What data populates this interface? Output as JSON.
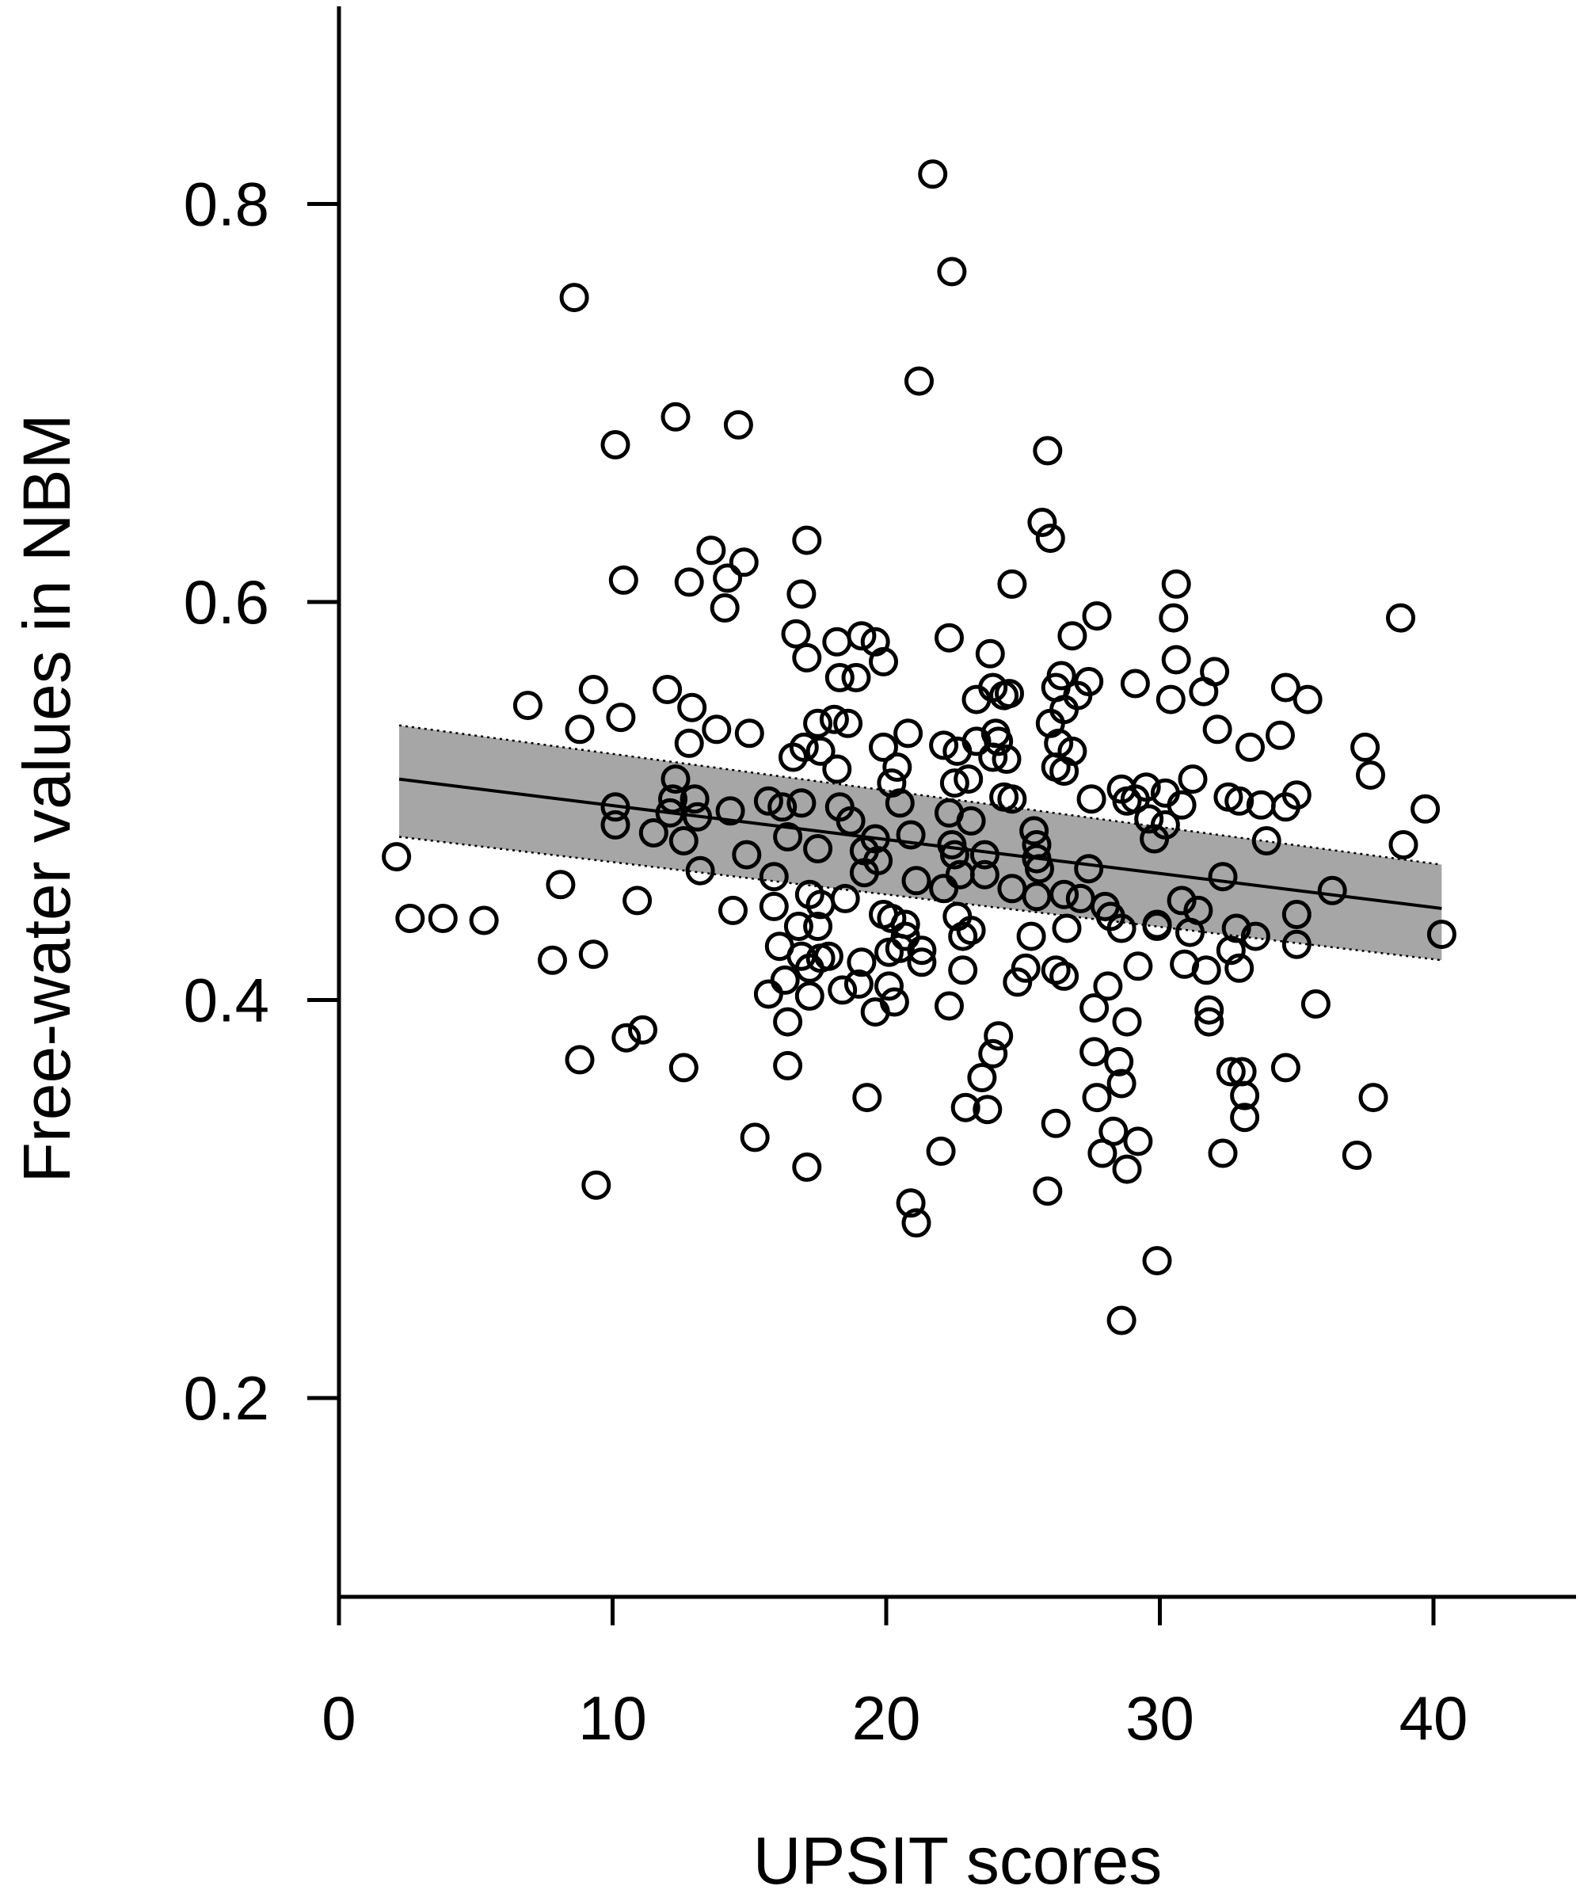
{
  "chart_data": {
    "type": "scatter",
    "xlabel": "UPSIT scores",
    "ylabel": "Free-water values in NBM",
    "xlim": [
      0,
      45
    ],
    "ylim": [
      0.1,
      0.9
    ],
    "x_ticks": [
      0,
      10,
      20,
      30,
      40
    ],
    "x_tick_labels": [
      "0",
      "10",
      "20",
      "30",
      "40"
    ],
    "y_ticks": [
      0.2,
      0.4,
      0.6,
      0.8
    ],
    "y_tick_labels": [
      "0.2",
      "0.4",
      "0.6",
      "0.8"
    ],
    "grid": false,
    "legend": false,
    "regression": {
      "x": [
        2.2,
        40.3
      ],
      "y": [
        0.511,
        0.446
      ]
    },
    "confidence_band": {
      "x": [
        2.2,
        40.3
      ],
      "upper": [
        0.538,
        0.468
      ],
      "lower": [
        0.482,
        0.42
      ]
    },
    "points": [
      [
        2.1,
        0.472
      ],
      [
        2.6,
        0.441
      ],
      [
        3.8,
        0.441
      ],
      [
        5.3,
        0.44
      ],
      [
        6.9,
        0.548
      ],
      [
        8.1,
        0.458
      ],
      [
        7.8,
        0.42
      ],
      [
        9.3,
        0.423
      ],
      [
        8.6,
        0.753
      ],
      [
        8.8,
        0.536
      ],
      [
        9.3,
        0.556
      ],
      [
        8.8,
        0.37
      ],
      [
        9.4,
        0.307
      ],
      [
        10.1,
        0.679
      ],
      [
        10.1,
        0.497
      ],
      [
        10.1,
        0.488
      ],
      [
        10.3,
        0.542
      ],
      [
        10.4,
        0.611
      ],
      [
        10.5,
        0.381
      ],
      [
        10.9,
        0.45
      ],
      [
        11.1,
        0.385
      ],
      [
        11.5,
        0.484
      ],
      [
        12.0,
        0.556
      ],
      [
        12.1,
        0.494
      ],
      [
        12.2,
        0.501
      ],
      [
        12.3,
        0.693
      ],
      [
        12.3,
        0.511
      ],
      [
        12.6,
        0.48
      ],
      [
        12.6,
        0.366
      ],
      [
        12.8,
        0.529
      ],
      [
        12.8,
        0.61
      ],
      [
        12.9,
        0.547
      ],
      [
        13.0,
        0.501
      ],
      [
        13.1,
        0.492
      ],
      [
        13.2,
        0.465
      ],
      [
        13.6,
        0.626
      ],
      [
        13.8,
        0.536
      ],
      [
        14.1,
        0.597
      ],
      [
        14.2,
        0.612
      ],
      [
        14.6,
        0.689
      ],
      [
        14.3,
        0.495
      ],
      [
        14.4,
        0.445
      ],
      [
        14.8,
        0.62
      ],
      [
        15.0,
        0.534
      ],
      [
        14.9,
        0.473
      ],
      [
        15.2,
        0.331
      ],
      [
        15.7,
        0.5
      ],
      [
        15.9,
        0.462
      ],
      [
        15.7,
        0.403
      ],
      [
        15.9,
        0.447
      ],
      [
        16.1,
        0.427
      ],
      [
        16.3,
        0.41
      ],
      [
        16.2,
        0.497
      ],
      [
        16.4,
        0.482
      ],
      [
        16.6,
        0.522
      ],
      [
        16.4,
        0.389
      ],
      [
        16.4,
        0.367
      ],
      [
        16.7,
        0.584
      ],
      [
        16.9,
        0.499
      ],
      [
        16.9,
        0.604
      ],
      [
        16.8,
        0.437
      ],
      [
        16.9,
        0.422
      ],
      [
        17.1,
        0.631
      ],
      [
        17.1,
        0.572
      ],
      [
        17.0,
        0.527
      ],
      [
        17.2,
        0.453
      ],
      [
        17.2,
        0.416
      ],
      [
        17.2,
        0.402
      ],
      [
        17.1,
        0.316
      ],
      [
        17.5,
        0.539
      ],
      [
        17.6,
        0.525
      ],
      [
        17.5,
        0.476
      ],
      [
        17.6,
        0.448
      ],
      [
        17.5,
        0.437
      ],
      [
        17.6,
        0.421
      ],
      [
        17.9,
        0.422
      ],
      [
        18.2,
        0.58
      ],
      [
        18.1,
        0.541
      ],
      [
        18.2,
        0.516
      ],
      [
        18.3,
        0.497
      ],
      [
        18.3,
        0.562
      ],
      [
        18.6,
        0.539
      ],
      [
        18.5,
        0.451
      ],
      [
        18.4,
        0.405
      ],
      [
        18.7,
        0.49
      ],
      [
        18.9,
        0.562
      ],
      [
        19.1,
        0.583
      ],
      [
        19.2,
        0.475
      ],
      [
        19.2,
        0.464
      ],
      [
        19.1,
        0.419
      ],
      [
        19.0,
        0.408
      ],
      [
        19.3,
        0.351
      ],
      [
        19.6,
        0.58
      ],
      [
        19.7,
        0.47
      ],
      [
        19.6,
        0.481
      ],
      [
        19.6,
        0.394
      ],
      [
        19.9,
        0.57
      ],
      [
        19.9,
        0.443
      ],
      [
        19.9,
        0.527
      ],
      [
        20.2,
        0.509
      ],
      [
        20.2,
        0.441
      ],
      [
        20.1,
        0.424
      ],
      [
        20.1,
        0.407
      ],
      [
        20.3,
        0.399
      ],
      [
        20.4,
        0.517
      ],
      [
        20.5,
        0.499
      ],
      [
        20.5,
        0.426
      ],
      [
        20.7,
        0.432
      ],
      [
        20.7,
        0.438
      ],
      [
        20.8,
        0.534
      ],
      [
        20.9,
        0.483
      ],
      [
        20.9,
        0.298
      ],
      [
        21.1,
        0.288
      ],
      [
        21.2,
        0.711
      ],
      [
        21.1,
        0.46
      ],
      [
        21.3,
        0.425
      ],
      [
        21.3,
        0.419
      ],
      [
        21.7,
        0.815
      ],
      [
        22.0,
        0.324
      ],
      [
        22.1,
        0.456
      ],
      [
        22.3,
        0.582
      ],
      [
        22.1,
        0.528
      ],
      [
        22.4,
        0.766
      ],
      [
        22.3,
        0.494
      ],
      [
        22.4,
        0.478
      ],
      [
        22.3,
        0.397
      ],
      [
        22.6,
        0.525
      ],
      [
        22.5,
        0.509
      ],
      [
        22.5,
        0.473
      ],
      [
        22.6,
        0.442
      ],
      [
        22.7,
        0.463
      ],
      [
        22.8,
        0.432
      ],
      [
        22.8,
        0.415
      ],
      [
        22.9,
        0.346
      ],
      [
        23.0,
        0.511
      ],
      [
        23.1,
        0.49
      ],
      [
        23.1,
        0.435
      ],
      [
        23.3,
        0.551
      ],
      [
        23.3,
        0.53
      ],
      [
        23.5,
        0.361
      ],
      [
        23.6,
        0.473
      ],
      [
        23.6,
        0.463
      ],
      [
        23.7,
        0.345
      ],
      [
        23.8,
        0.574
      ],
      [
        23.9,
        0.557
      ],
      [
        23.9,
        0.522
      ],
      [
        24.0,
        0.534
      ],
      [
        24.1,
        0.53
      ],
      [
        24.1,
        0.382
      ],
      [
        23.9,
        0.373
      ],
      [
        24.3,
        0.553
      ],
      [
        24.3,
        0.502
      ],
      [
        24.4,
        0.521
      ],
      [
        24.6,
        0.609
      ],
      [
        24.5,
        0.554
      ],
      [
        24.6,
        0.501
      ],
      [
        24.6,
        0.456
      ],
      [
        24.8,
        0.409
      ],
      [
        25.1,
        0.416
      ],
      [
        25.3,
        0.432
      ],
      [
        25.4,
        0.485
      ],
      [
        25.5,
        0.478
      ],
      [
        25.5,
        0.452
      ],
      [
        25.5,
        0.471
      ],
      [
        25.6,
        0.466
      ],
      [
        25.7,
        0.64
      ],
      [
        26.0,
        0.632
      ],
      [
        25.9,
        0.676
      ],
      [
        26.0,
        0.539
      ],
      [
        25.9,
        0.304
      ],
      [
        26.2,
        0.557
      ],
      [
        26.3,
        0.529
      ],
      [
        26.2,
        0.517
      ],
      [
        26.2,
        0.415
      ],
      [
        26.2,
        0.338
      ],
      [
        26.4,
        0.563
      ],
      [
        26.5,
        0.546
      ],
      [
        26.5,
        0.515
      ],
      [
        26.5,
        0.453
      ],
      [
        26.6,
        0.436
      ],
      [
        26.5,
        0.412
      ],
      [
        26.8,
        0.583
      ],
      [
        26.8,
        0.525
      ],
      [
        27.0,
        0.553
      ],
      [
        27.1,
        0.451
      ],
      [
        27.4,
        0.56
      ],
      [
        27.4,
        0.466
      ],
      [
        27.5,
        0.501
      ],
      [
        27.6,
        0.374
      ],
      [
        27.6,
        0.396
      ],
      [
        27.7,
        0.351
      ],
      [
        27.7,
        0.593
      ],
      [
        27.9,
        0.323
      ],
      [
        28.0,
        0.447
      ],
      [
        28.1,
        0.407
      ],
      [
        28.2,
        0.442
      ],
      [
        28.3,
        0.334
      ],
      [
        28.6,
        0.506
      ],
      [
        28.6,
        0.436
      ],
      [
        28.5,
        0.369
      ],
      [
        28.6,
        0.358
      ],
      [
        28.6,
        0.239
      ],
      [
        28.8,
        0.5
      ],
      [
        28.8,
        0.389
      ],
      [
        28.8,
        0.315
      ],
      [
        29.1,
        0.559
      ],
      [
        29.1,
        0.501
      ],
      [
        29.2,
        0.417
      ],
      [
        29.2,
        0.329
      ],
      [
        29.5,
        0.507
      ],
      [
        29.6,
        0.491
      ],
      [
        29.8,
        0.481
      ],
      [
        29.9,
        0.269
      ],
      [
        29.9,
        0.438
      ],
      [
        29.9,
        0.437
      ],
      [
        30.2,
        0.504
      ],
      [
        30.2,
        0.488
      ],
      [
        30.4,
        0.551
      ],
      [
        30.5,
        0.592
      ],
      [
        30.6,
        0.571
      ],
      [
        30.6,
        0.609
      ],
      [
        30.8,
        0.498
      ],
      [
        30.8,
        0.45
      ],
      [
        30.9,
        0.418
      ],
      [
        31.1,
        0.434
      ],
      [
        31.2,
        0.511
      ],
      [
        31.4,
        0.445
      ],
      [
        31.6,
        0.555
      ],
      [
        31.7,
        0.415
      ],
      [
        31.8,
        0.395
      ],
      [
        31.8,
        0.389
      ],
      [
        32.0,
        0.565
      ],
      [
        32.1,
        0.536
      ],
      [
        32.3,
        0.462
      ],
      [
        32.3,
        0.323
      ],
      [
        32.5,
        0.502
      ],
      [
        32.6,
        0.425
      ],
      [
        32.6,
        0.364
      ],
      [
        32.8,
        0.436
      ],
      [
        32.9,
        0.5
      ],
      [
        32.9,
        0.416
      ],
      [
        33.0,
        0.364
      ],
      [
        33.1,
        0.352
      ],
      [
        33.1,
        0.341
      ],
      [
        33.3,
        0.527
      ],
      [
        33.5,
        0.432
      ],
      [
        33.7,
        0.498
      ],
      [
        33.9,
        0.48
      ],
      [
        34.4,
        0.533
      ],
      [
        34.6,
        0.497
      ],
      [
        34.6,
        0.557
      ],
      [
        34.6,
        0.366
      ],
      [
        35.0,
        0.503
      ],
      [
        35.0,
        0.443
      ],
      [
        35.0,
        0.428
      ],
      [
        35.4,
        0.551
      ],
      [
        35.7,
        0.398
      ],
      [
        36.3,
        0.455
      ],
      [
        37.2,
        0.322
      ],
      [
        37.5,
        0.527
      ],
      [
        37.7,
        0.513
      ],
      [
        37.8,
        0.351
      ],
      [
        38.8,
        0.592
      ],
      [
        38.9,
        0.478
      ],
      [
        39.7,
        0.496
      ],
      [
        40.3,
        0.433
      ]
    ]
  }
}
